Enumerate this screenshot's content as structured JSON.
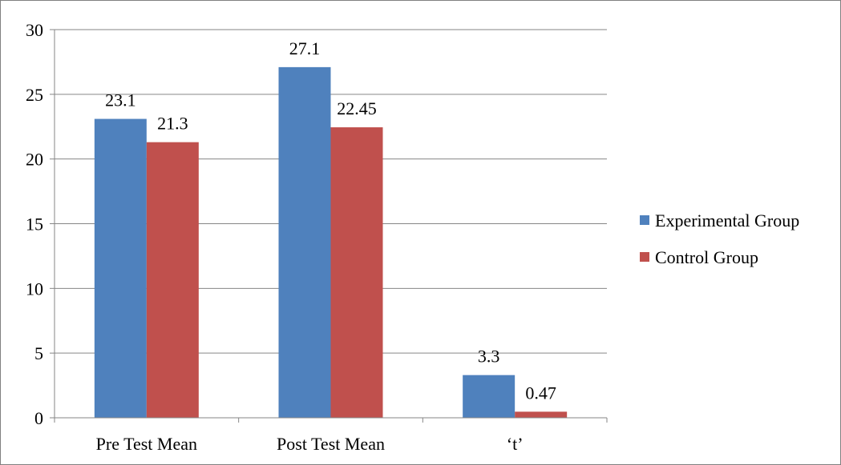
{
  "chart_data": {
    "type": "bar",
    "categories": [
      "Pre Test Mean",
      "Post Test Mean",
      "‘t’"
    ],
    "series": [
      {
        "name": "Experimental Group",
        "values": [
          23.1,
          27.1,
          3.3
        ],
        "labels": [
          "23.1",
          "27.1",
          "3.3"
        ],
        "color": "#4F81BD"
      },
      {
        "name": "Control Group",
        "values": [
          21.3,
          22.45,
          0.47
        ],
        "labels": [
          "21.3",
          "22.45",
          "0.47"
        ],
        "color": "#C0504D"
      }
    ],
    "ylim": [
      0,
      30
    ],
    "yticks": [
      "0",
      "5",
      "10",
      "15",
      "20",
      "25",
      "30"
    ],
    "grid": true,
    "legend_position": "right",
    "title": "",
    "xlabel": "",
    "ylabel": ""
  }
}
